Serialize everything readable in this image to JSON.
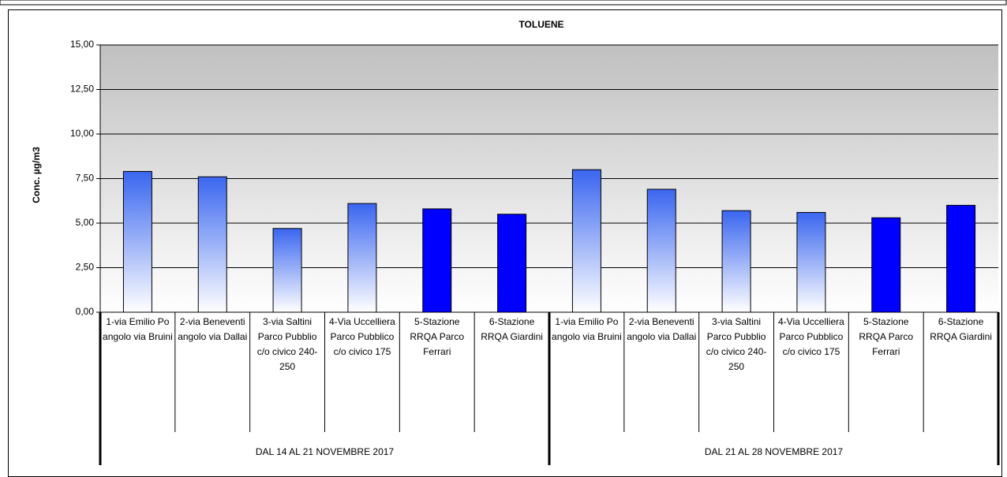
{
  "chart_data": {
    "type": "bar",
    "title": "TOLUENE",
    "y_label": "Conc. µg/m3",
    "ylim": [
      0,
      15
    ],
    "yticks": [
      {
        "value": 0,
        "label": "0,00"
      },
      {
        "value": 2.5,
        "label": "2,50"
      },
      {
        "value": 5,
        "label": "5,00"
      },
      {
        "value": 7.5,
        "label": "7,50"
      },
      {
        "value": 10,
        "label": "10,00"
      },
      {
        "value": 12.5,
        "label": "12,50"
      },
      {
        "value": 15,
        "label": "15,00"
      }
    ],
    "grid": true,
    "color": "#0000ff",
    "gradient_color": "#3a66f0",
    "groups": [
      {
        "name": "DAL 14 AL 21 NOVEMBRE 2017",
        "categories": [
          "1-via Emilio Po angolo via Bruini",
          "2-via Beneventi angolo via Dallai",
          "3-via Saltini Parco Pubblio c/o civico 240-250",
          "4-Via Uccelliera Parco Pubblico c/o civico 175",
          "5-Stazione RRQA Parco Ferrari",
          "6-Stazione RRQA Giardini"
        ],
        "values": [
          7.9,
          7.6,
          4.7,
          6.1,
          5.8,
          5.5
        ],
        "fills": [
          "gradient",
          "gradient",
          "gradient",
          "gradient",
          "solid",
          "solid"
        ]
      },
      {
        "name": "DAL 21 AL 28 NOVEMBRE 2017",
        "categories": [
          "1-via Emilio Po angolo via Bruini",
          "2-via Beneventi angolo via Dallai",
          "3-via Saltini Parco Pubblio c/o civico 240-250",
          "4-Via Uccelliera Parco Pubblico c/o civico 175",
          "5-Stazione RRQA Parco Ferrari",
          "6-Stazione RRQA Giardini"
        ],
        "values": [
          8.0,
          6.9,
          5.7,
          5.6,
          5.3,
          6.0
        ],
        "fills": [
          "gradient",
          "gradient",
          "gradient",
          "gradient",
          "solid",
          "solid"
        ]
      }
    ]
  }
}
